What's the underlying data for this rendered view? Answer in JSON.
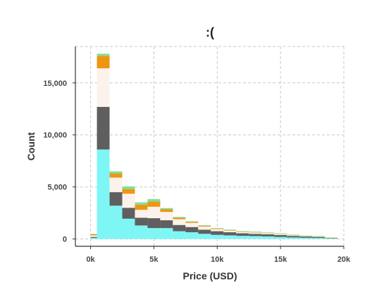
{
  "chart_data": {
    "type": "bar",
    "stacked": true,
    "histogram": true,
    "title": ":(",
    "xlabel": "Price (USD)",
    "ylabel": "Count",
    "xlim": [
      -1200,
      20000
    ],
    "ylim": [
      -700,
      18500
    ],
    "bin_width": 1000,
    "x_ticks": [
      0,
      5000,
      10000,
      15000,
      20000
    ],
    "x_tick_labels": [
      "0k",
      "5k",
      "10k",
      "15k",
      "20k"
    ],
    "y_ticks": [
      0,
      5000,
      10000,
      15000
    ],
    "y_tick_labels": [
      "0",
      "5,000",
      "10,000",
      "15,000"
    ],
    "grid": true,
    "grid_style": "dashed",
    "legend": "none",
    "bin_starts": [
      0,
      500,
      1500,
      2500,
      3500,
      4500,
      5500,
      6500,
      7500,
      8500,
      9500,
      10500,
      11500,
      12500,
      13500,
      14500,
      15500,
      16500,
      17500,
      18500
    ],
    "series": [
      {
        "color": "#7ff6f6",
        "values": [
          100,
          8600,
          3200,
          1950,
          1300,
          1050,
          1050,
          750,
          650,
          500,
          400,
          350,
          300,
          280,
          250,
          200,
          150,
          120,
          100,
          50
        ]
      },
      {
        "color": "#5f5f5f",
        "values": [
          100,
          4100,
          1300,
          1050,
          750,
          950,
          750,
          600,
          500,
          400,
          350,
          300,
          250,
          220,
          200,
          180,
          150,
          120,
          100,
          30
        ]
      },
      {
        "color": "#fcf2ec",
        "values": [
          150,
          3700,
          1400,
          1350,
          750,
          1100,
          800,
          550,
          400,
          300,
          200,
          160,
          140,
          130,
          110,
          100,
          60,
          40,
          30,
          10
        ]
      },
      {
        "color": "#ee9611",
        "values": [
          100,
          1200,
          400,
          450,
          500,
          500,
          250,
          150,
          100,
          80,
          60,
          50,
          40,
          40,
          30,
          20,
          20,
          10,
          10,
          5
        ]
      },
      {
        "color": "#77e399",
        "values": [
          10,
          200,
          200,
          250,
          220,
          230,
          120,
          70,
          50,
          40,
          30,
          30,
          30,
          20,
          20,
          20,
          20,
          10,
          10,
          5
        ]
      }
    ]
  }
}
